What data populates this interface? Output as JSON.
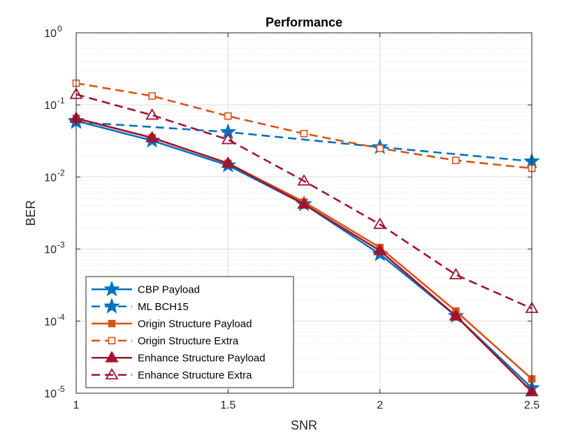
{
  "chart_data": {
    "type": "line",
    "title": "Performance",
    "xlabel": "SNR",
    "ylabel": "BER",
    "xlim": [
      1,
      2.5
    ],
    "ylim": [
      1e-05,
      1
    ],
    "yscale": "log",
    "grid": true,
    "minor_grid": true,
    "legend_position": "bottom-left",
    "x_ticks": [
      {
        "value": 1,
        "label": "1"
      },
      {
        "value": 1.5,
        "label": "1.5"
      },
      {
        "value": 2,
        "label": "2"
      },
      {
        "value": 2.5,
        "label": "2.5"
      }
    ],
    "y_ticks": [
      {
        "value": 1e-05,
        "base": "10",
        "exp": "-5"
      },
      {
        "value": 0.0001,
        "base": "10",
        "exp": "-4"
      },
      {
        "value": 0.001,
        "base": "10",
        "exp": "-3"
      },
      {
        "value": 0.01,
        "base": "10",
        "exp": "-2"
      },
      {
        "value": 0.1,
        "base": "10",
        "exp": "-1"
      },
      {
        "value": 1,
        "base": "10",
        "exp": "0"
      }
    ],
    "series": [
      {
        "name": "CBP Payload",
        "color": "#0072BD",
        "dash": "solid",
        "marker": "star",
        "x": [
          1,
          1.25,
          1.5,
          1.75,
          2,
          2.25,
          2.5
        ],
        "y": [
          0.06,
          0.032,
          0.0145,
          0.0042,
          0.00085,
          0.000118,
          1.18e-05
        ]
      },
      {
        "name": "ML BCH15",
        "color": "#0072BD",
        "dash": "dashed",
        "marker": "star",
        "x": [
          1,
          1.5,
          2,
          2.5
        ],
        "y": [
          0.058,
          0.042,
          0.026,
          0.0165
        ]
      },
      {
        "name": "Origin Structure Payload",
        "color": "#D95319",
        "dash": "solid",
        "marker": "square-filled",
        "x": [
          1,
          1.25,
          1.5,
          1.75,
          2,
          2.25,
          2.5
        ],
        "y": [
          0.065,
          0.035,
          0.0155,
          0.0045,
          0.00105,
          0.000138,
          1.58e-05
        ]
      },
      {
        "name": "Origin Structure Extra",
        "color": "#D95319",
        "dash": "dashed",
        "marker": "square-open",
        "x": [
          1,
          1.25,
          1.5,
          1.75,
          2,
          2.25,
          2.5
        ],
        "y": [
          0.2,
          0.133,
          0.07,
          0.04,
          0.025,
          0.017,
          0.0132
        ]
      },
      {
        "name": "Enhance Structure Payload",
        "color": "#A2142F",
        "dash": "solid",
        "marker": "triangle-filled",
        "x": [
          1,
          1.25,
          1.5,
          1.75,
          2,
          2.25,
          2.5
        ],
        "y": [
          0.065,
          0.035,
          0.0155,
          0.0042,
          0.00095,
          0.000118,
          1.05e-05
        ]
      },
      {
        "name": "Enhance Structure Extra",
        "color": "#A2142F",
        "dash": "dashed",
        "marker": "triangle-open",
        "x": [
          1,
          1.25,
          1.5,
          1.75,
          2,
          2.25,
          2.5
        ],
        "y": [
          0.14,
          0.072,
          0.033,
          0.0088,
          0.0022,
          0.00044,
          0.00015
        ]
      }
    ]
  }
}
